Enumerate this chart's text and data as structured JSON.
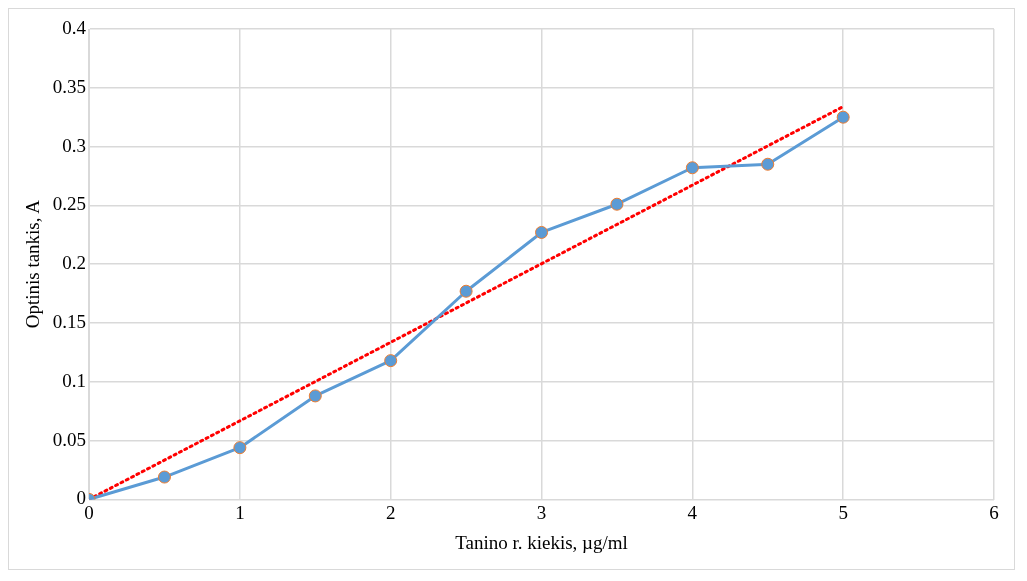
{
  "chart_data": {
    "type": "line",
    "xlabel": "Tanino r. kiekis, µg/ml",
    "ylabel": "Optinis tankis, A",
    "xlim": [
      0,
      6
    ],
    "xticks": [
      0,
      1,
      2,
      3,
      4,
      5,
      6
    ],
    "ylim": [
      0,
      0.4
    ],
    "yticks": [
      0,
      0.05,
      0.1,
      0.15,
      0.2,
      0.25,
      0.3,
      0.35,
      0.4
    ],
    "grid": true,
    "legend": false,
    "series": [
      {
        "type": "line",
        "color": "#5b9bd5",
        "marker": "circle",
        "line_style": "solid",
        "x": [
          0,
          0.5,
          1,
          1.5,
          2,
          2.5,
          3,
          3.5,
          4,
          4.5,
          5
        ],
        "values": [
          0,
          0.019,
          0.044,
          0.088,
          0.118,
          0.177,
          0.227,
          0.251,
          0.282,
          0.285,
          0.325
        ]
      },
      {
        "type": "line",
        "color": "#ff0000",
        "marker": "none",
        "line_style": "dotted",
        "x": [
          0,
          5
        ],
        "values": [
          0,
          0.334
        ]
      }
    ]
  }
}
